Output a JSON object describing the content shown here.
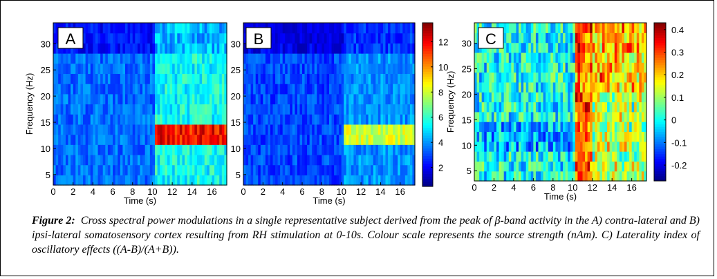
{
  "figure": {
    "label": "Figure 2:",
    "caption": "Cross spectral power modulations in a single representative subject derived from the peak of β-band activity in the A) contra-lateral and B) ipsi-lateral somatosensory cortex resulting from RH stimulation at 0-10s. Colour scale represents the source strength (nAm). C) Laterality index of oscillatory effects ((A-B)/(A+B))."
  },
  "colors": {
    "jet": [
      "#00008f",
      "#0000ff",
      "#00ffff",
      "#ffff00",
      "#ff0000",
      "#800000"
    ]
  },
  "chart_data": [
    {
      "type": "heatmap",
      "panel": "A",
      "xlabel": "Time (s)",
      "ylabel": "Frequency (Hz)",
      "xlim": [
        0,
        17.5
      ],
      "ylim": [
        3,
        34
      ],
      "xticks": [
        0,
        2,
        4,
        6,
        8,
        10,
        12,
        14,
        16
      ],
      "yticks": [
        5,
        10,
        15,
        20,
        25,
        30
      ],
      "colorbar": "shared-AB",
      "description_values": {
        "baseline": 3.5,
        "post_stim_10_15Hz_peak": 12.5,
        "post_stim_other": 5
      }
    },
    {
      "type": "heatmap",
      "panel": "B",
      "xlabel": "Time (s)",
      "ylabel": "",
      "xlim": [
        0,
        17.5
      ],
      "ylim": [
        3,
        34
      ],
      "xticks": [
        0,
        2,
        4,
        6,
        8,
        10,
        12,
        14,
        16
      ],
      "yticks": [
        5,
        10,
        15,
        20,
        25,
        30
      ],
      "colorbar": {
        "range": [
          0.5,
          13.5
        ],
        "ticks": [
          2,
          4,
          6,
          8,
          10,
          12
        ]
      },
      "description_values": {
        "baseline": 3,
        "post_stim_10_15Hz_peak": 8,
        "post_stim_other": 4
      }
    },
    {
      "type": "heatmap",
      "panel": "C",
      "xlabel": "Time (s)",
      "ylabel": "Frequency (Hz)",
      "xlim": [
        0,
        17.5
      ],
      "ylim": [
        3,
        34
      ],
      "xticks": [
        0,
        2,
        4,
        6,
        8,
        10,
        12,
        14,
        16
      ],
      "yticks": [
        5,
        10,
        15,
        20,
        25,
        30
      ],
      "colorbar": {
        "range": [
          -0.27,
          0.43
        ],
        "ticks": [
          -0.2,
          -0.1,
          0,
          0.1,
          0.2,
          0.3,
          0.4
        ]
      },
      "description_values": {
        "baseline": 0,
        "post_stim_peak": 0.35
      }
    }
  ]
}
